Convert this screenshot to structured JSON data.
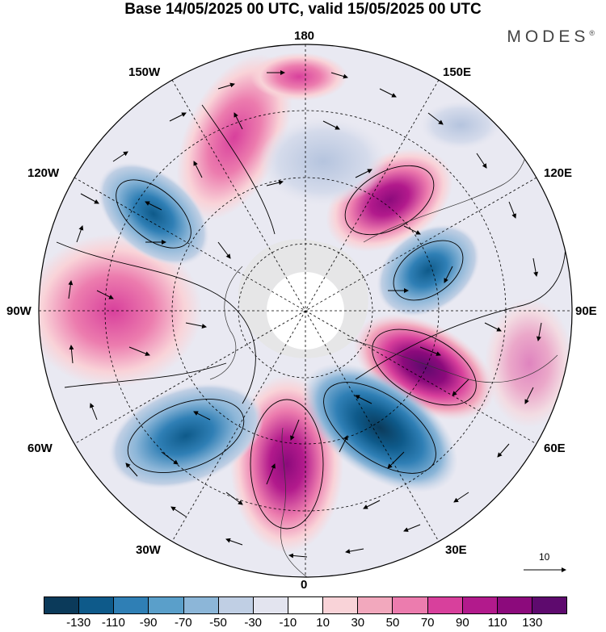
{
  "title": "Base 14/05/2025 00 UTC, valid 15/05/2025 00 UTC",
  "brand": "MODES",
  "brand_mark": "®",
  "longitude_labels": {
    "top": "180",
    "top_left": "150W",
    "top_right": "150E",
    "upper_left": "120W",
    "upper_right": "120E",
    "left": "90W",
    "right": "90E",
    "lower_left": "60W",
    "lower_right": "60E",
    "bottom_left": "30W",
    "bottom_right": "30E",
    "bottom": "0"
  },
  "reference_vector_label": "10",
  "colorbar": {
    "ticks": [
      "-130",
      "-110",
      "-90",
      "-70",
      "-50",
      "-30",
      "-10",
      "10",
      "30",
      "50",
      "70",
      "90",
      "110",
      "130"
    ],
    "colors": [
      "#0b3a5a",
      "#0e5a8a",
      "#2f7fb5",
      "#5a9fca",
      "#8cb6d8",
      "#c0cfe4",
      "#e3e4ef",
      "#ffffff",
      "#f9d3d8",
      "#f2a8bd",
      "#ec7cae",
      "#d8409c",
      "#b21a8c",
      "#8c0a7c",
      "#5e0a6e"
    ]
  },
  "anomaly_cells": [
    {
      "sign": "positive",
      "level": 110,
      "sector": "east-southeast"
    },
    {
      "sign": "positive",
      "level": 90,
      "sector": "south"
    },
    {
      "sign": "positive",
      "level": 90,
      "sector": "northeast"
    },
    {
      "sign": "positive",
      "level": 70,
      "sector": "west"
    },
    {
      "sign": "positive",
      "level": 70,
      "sector": "north-northwest"
    },
    {
      "sign": "negative",
      "level": -110,
      "sector": "south-southeast"
    },
    {
      "sign": "negative",
      "level": -90,
      "sector": "southwest"
    },
    {
      "sign": "negative",
      "level": -90,
      "sector": "east-northeast"
    },
    {
      "sign": "negative",
      "level": -90,
      "sector": "northwest"
    },
    {
      "sign": "negative",
      "level": -30,
      "sector": "north"
    }
  ],
  "colors": {
    "land": "#e6e6e6",
    "pole_cap": "#ffffff",
    "graticule": "#000000"
  }
}
